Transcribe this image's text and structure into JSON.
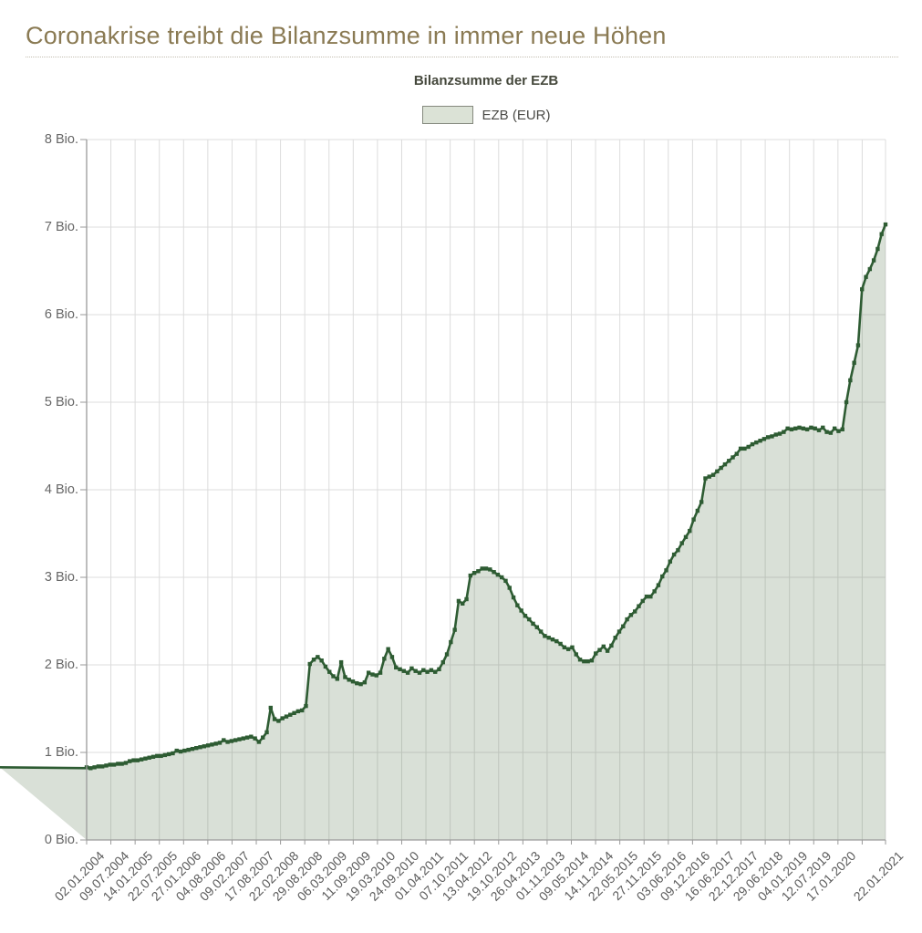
{
  "page": {
    "title": "Coronakrise treibt die Bilanzsumme in immer neue Höhen"
  },
  "chart": {
    "title": "Bilanzsumme der EZB",
    "legend": {
      "label": "EZB (EUR)",
      "swatch_fill": "#dbe2d6",
      "swatch_border": "#85897e"
    }
  },
  "chart_data": {
    "type": "area",
    "title": "Bilanzsumme der EZB",
    "ylabel": "",
    "xlabel": "",
    "unit": "Bio. EUR",
    "ylim": [
      0,
      8
    ],
    "grid": true,
    "legend_position": "top-center",
    "colors": {
      "line": "#2e5c33",
      "fill": "rgba(96,126,88,0.24)",
      "gridline": "#dcdcdc",
      "axis": "#9a9a9a",
      "tick_label": "#666666",
      "heading": "#8a7a53"
    },
    "y_ticks": [
      {
        "label": "0 Bio.",
        "value": 0
      },
      {
        "label": "1 Bio.",
        "value": 1
      },
      {
        "label": "2 Bio.",
        "value": 2
      },
      {
        "label": "3 Bio.",
        "value": 3
      },
      {
        "label": "4 Bio.",
        "value": 4
      },
      {
        "label": "5 Bio.",
        "value": 5
      },
      {
        "label": "6 Bio.",
        "value": 6
      },
      {
        "label": "7 Bio.",
        "value": 7
      },
      {
        "label": "8 Bio.",
        "value": 8
      }
    ],
    "total_weeks": 890,
    "x_ticks": [
      {
        "label": "02.01.2004",
        "week": 0
      },
      {
        "label": "09.07.2004",
        "week": 27
      },
      {
        "label": "14.01.2005",
        "week": 54
      },
      {
        "label": "22.07.2005",
        "week": 81
      },
      {
        "label": "27.01.2006",
        "week": 108
      },
      {
        "label": "04.08.2006",
        "week": 135
      },
      {
        "label": "09.02.2007",
        "week": 162
      },
      {
        "label": "17.08.2007",
        "week": 189
      },
      {
        "label": "22.02.2008",
        "week": 216
      },
      {
        "label": "29.08.2008",
        "week": 243
      },
      {
        "label": "06.03.2009",
        "week": 270
      },
      {
        "label": "11.09.2009",
        "week": 297
      },
      {
        "label": "19.03.2010",
        "week": 324
      },
      {
        "label": "24.09.2010",
        "week": 351
      },
      {
        "label": "01.04.2011",
        "week": 378
      },
      {
        "label": "07.10.2011",
        "week": 405
      },
      {
        "label": "13.04.2012",
        "week": 432
      },
      {
        "label": "19.10.2012",
        "week": 459
      },
      {
        "label": "26.04.2013",
        "week": 486
      },
      {
        "label": "01.11.2013",
        "week": 513
      },
      {
        "label": "09.05.2014",
        "week": 540
      },
      {
        "label": "14.11.2014",
        "week": 567
      },
      {
        "label": "22.05.2015",
        "week": 594
      },
      {
        "label": "27.11.2015",
        "week": 621
      },
      {
        "label": "03.06.2016",
        "week": 648
      },
      {
        "label": "09.12.2016",
        "week": 675
      },
      {
        "label": "16.06.2017",
        "week": 702
      },
      {
        "label": "22.12.2017",
        "week": 729
      },
      {
        "label": "29.06.2018",
        "week": 756
      },
      {
        "label": "04.01.2019",
        "week": 783
      },
      {
        "label": "12.07.2019",
        "week": 810
      },
      {
        "label": "17.01.2020",
        "week": 837
      },
      {
        "label": "22.01.2021",
        "week": 890
      }
    ],
    "unlabeled_gridline_weeks": [
      864
    ],
    "series": [
      {
        "name": "EZB (EUR)",
        "start": "2004-01",
        "end": "2021-01",
        "interval": "monthly",
        "values_unit": "Bio. (trillion) EUR",
        "values": [
          0.83,
          0.82,
          0.83,
          0.84,
          0.84,
          0.85,
          0.86,
          0.86,
          0.87,
          0.87,
          0.88,
          0.9,
          0.91,
          0.91,
          0.92,
          0.93,
          0.94,
          0.95,
          0.96,
          0.96,
          0.97,
          0.98,
          0.99,
          1.02,
          1.01,
          1.02,
          1.03,
          1.04,
          1.05,
          1.06,
          1.07,
          1.08,
          1.09,
          1.1,
          1.11,
          1.14,
          1.12,
          1.13,
          1.14,
          1.15,
          1.16,
          1.17,
          1.18,
          1.16,
          1.12,
          1.17,
          1.23,
          1.51,
          1.38,
          1.36,
          1.39,
          1.41,
          1.43,
          1.45,
          1.47,
          1.48,
          1.53,
          2.01,
          2.06,
          2.09,
          2.05,
          1.98,
          1.92,
          1.87,
          1.84,
          2.03,
          1.86,
          1.83,
          1.81,
          1.79,
          1.78,
          1.8,
          1.91,
          1.89,
          1.88,
          1.91,
          2.07,
          2.18,
          2.09,
          1.97,
          1.95,
          1.93,
          1.91,
          1.96,
          1.93,
          1.91,
          1.94,
          1.92,
          1.94,
          1.92,
          1.95,
          2.03,
          2.12,
          2.26,
          2.4,
          2.73,
          2.7,
          2.75,
          3.02,
          3.05,
          3.07,
          3.1,
          3.1,
          3.09,
          3.06,
          3.03,
          3.0,
          2.96,
          2.88,
          2.77,
          2.68,
          2.62,
          2.56,
          2.52,
          2.47,
          2.43,
          2.38,
          2.33,
          2.31,
          2.29,
          2.27,
          2.24,
          2.2,
          2.18,
          2.2,
          2.12,
          2.06,
          2.04,
          2.04,
          2.05,
          2.13,
          2.17,
          2.21,
          2.16,
          2.22,
          2.31,
          2.38,
          2.44,
          2.52,
          2.57,
          2.61,
          2.67,
          2.73,
          2.78,
          2.78,
          2.84,
          2.91,
          3.01,
          3.08,
          3.18,
          3.26,
          3.31,
          3.39,
          3.46,
          3.53,
          3.66,
          3.76,
          3.86,
          4.13,
          4.15,
          4.17,
          4.21,
          4.25,
          4.29,
          4.33,
          4.37,
          4.41,
          4.47,
          4.47,
          4.49,
          4.52,
          4.54,
          4.56,
          4.58,
          4.6,
          4.61,
          4.63,
          4.64,
          4.66,
          4.7,
          4.69,
          4.7,
          4.71,
          4.7,
          4.69,
          4.71,
          4.7,
          4.68,
          4.71,
          4.66,
          4.65,
          4.7,
          4.67,
          4.69,
          5.0,
          5.25,
          5.45,
          5.65,
          6.29,
          6.43,
          6.52,
          6.62,
          6.75,
          6.92,
          7.03
        ]
      }
    ]
  }
}
